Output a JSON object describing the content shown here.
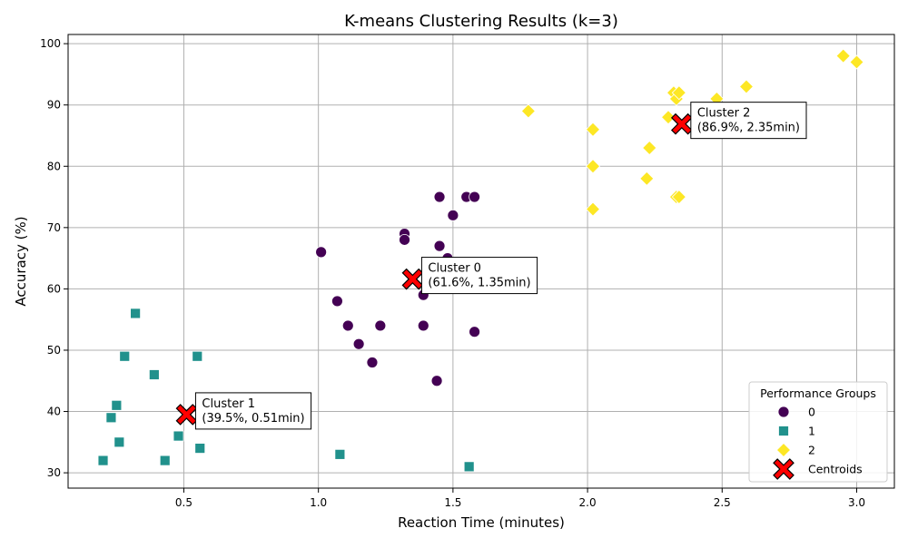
{
  "chart_data": {
    "type": "scatter",
    "title": "K-means Clustering Results (k=3)",
    "xlabel": "Reaction Time (minutes)",
    "ylabel": "Accuracy (%)",
    "xlim": [
      0.07,
      3.14
    ],
    "ylim": [
      27.5,
      101.5
    ],
    "xticks": [
      0.5,
      1.0,
      1.5,
      2.0,
      2.5,
      3.0
    ],
    "yticks": [
      30,
      40,
      50,
      60,
      70,
      80,
      90,
      100
    ],
    "grid": true,
    "legend": {
      "title": "Performance Groups",
      "placement": "bottom-right"
    },
    "series": [
      {
        "name": "0",
        "marker": "circle",
        "color": "#440154",
        "points": [
          [
            1.01,
            66
          ],
          [
            1.07,
            58
          ],
          [
            1.11,
            54
          ],
          [
            1.15,
            51
          ],
          [
            1.2,
            48
          ],
          [
            1.23,
            54
          ],
          [
            1.32,
            69
          ],
          [
            1.32,
            68
          ],
          [
            1.39,
            59
          ],
          [
            1.39,
            54
          ],
          [
            1.44,
            45
          ],
          [
            1.45,
            75
          ],
          [
            1.45,
            67
          ],
          [
            1.48,
            65
          ],
          [
            1.5,
            72
          ],
          [
            1.55,
            75
          ],
          [
            1.58,
            75
          ],
          [
            1.58,
            53
          ]
        ]
      },
      {
        "name": "1",
        "marker": "square",
        "color": "#21918c",
        "points": [
          [
            0.2,
            32
          ],
          [
            0.23,
            39
          ],
          [
            0.25,
            41
          ],
          [
            0.26,
            35
          ],
          [
            0.28,
            49
          ],
          [
            0.32,
            56
          ],
          [
            0.39,
            46
          ],
          [
            0.43,
            32
          ],
          [
            0.48,
            36
          ],
          [
            0.55,
            49
          ],
          [
            0.56,
            34
          ],
          [
            1.08,
            33
          ],
          [
            1.56,
            31
          ]
        ]
      },
      {
        "name": "2",
        "marker": "diamond",
        "color": "#fde725",
        "points": [
          [
            1.78,
            89
          ],
          [
            2.02,
            86
          ],
          [
            2.02,
            80
          ],
          [
            2.02,
            73
          ],
          [
            2.22,
            78
          ],
          [
            2.23,
            83
          ],
          [
            2.3,
            88
          ],
          [
            2.32,
            92
          ],
          [
            2.33,
            91
          ],
          [
            2.33,
            75
          ],
          [
            2.34,
            75
          ],
          [
            2.34,
            92
          ],
          [
            2.4,
            86
          ],
          [
            2.48,
            91
          ],
          [
            2.57,
            89
          ],
          [
            2.59,
            93
          ],
          [
            2.95,
            98
          ],
          [
            3.0,
            97
          ]
        ]
      },
      {
        "name": "Centroids",
        "marker": "x",
        "color": "#ff0000",
        "points": [
          [
            1.35,
            61.6
          ],
          [
            0.51,
            39.5
          ],
          [
            2.35,
            86.9
          ]
        ]
      }
    ],
    "annotations": [
      {
        "cluster": "Cluster 0",
        "detail": "(61.6%, 1.35min)",
        "x": 1.35,
        "y": 61.6
      },
      {
        "cluster": "Cluster 1",
        "detail": "(39.5%, 0.51min)",
        "x": 0.51,
        "y": 39.5
      },
      {
        "cluster": "Cluster 2",
        "detail": "(86.9%, 2.35min)",
        "x": 2.35,
        "y": 86.9
      }
    ]
  }
}
